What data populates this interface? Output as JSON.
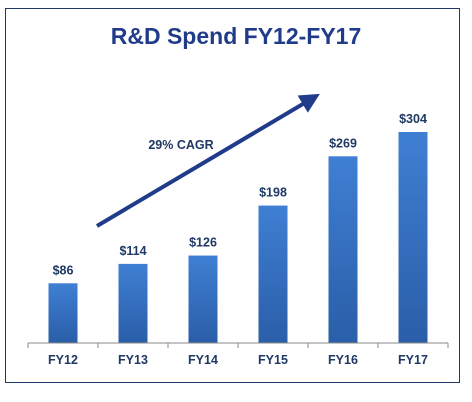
{
  "chart_data": {
    "type": "bar",
    "title": "R&D Spend FY12-FY17",
    "categories": [
      "FY12",
      "FY13",
      "FY14",
      "FY15",
      "FY16",
      "FY17"
    ],
    "values": [
      86,
      114,
      126,
      198,
      269,
      304
    ],
    "value_labels": [
      "$86",
      "$114",
      "$126",
      "$198",
      "$269",
      "$304"
    ],
    "ylim": [
      0,
      330
    ],
    "grid": false,
    "legend": "none",
    "annotations": [
      {
        "text": "29% CAGR",
        "kind": "trend-arrow"
      }
    ],
    "colors": {
      "bar_top": "#3f7fd3",
      "bar_bottom": "#2a5ea8",
      "title": "#1f3b8a",
      "text": "#1f3864",
      "arrow": "#1f3b8a",
      "frame": "#1f3864"
    }
  }
}
